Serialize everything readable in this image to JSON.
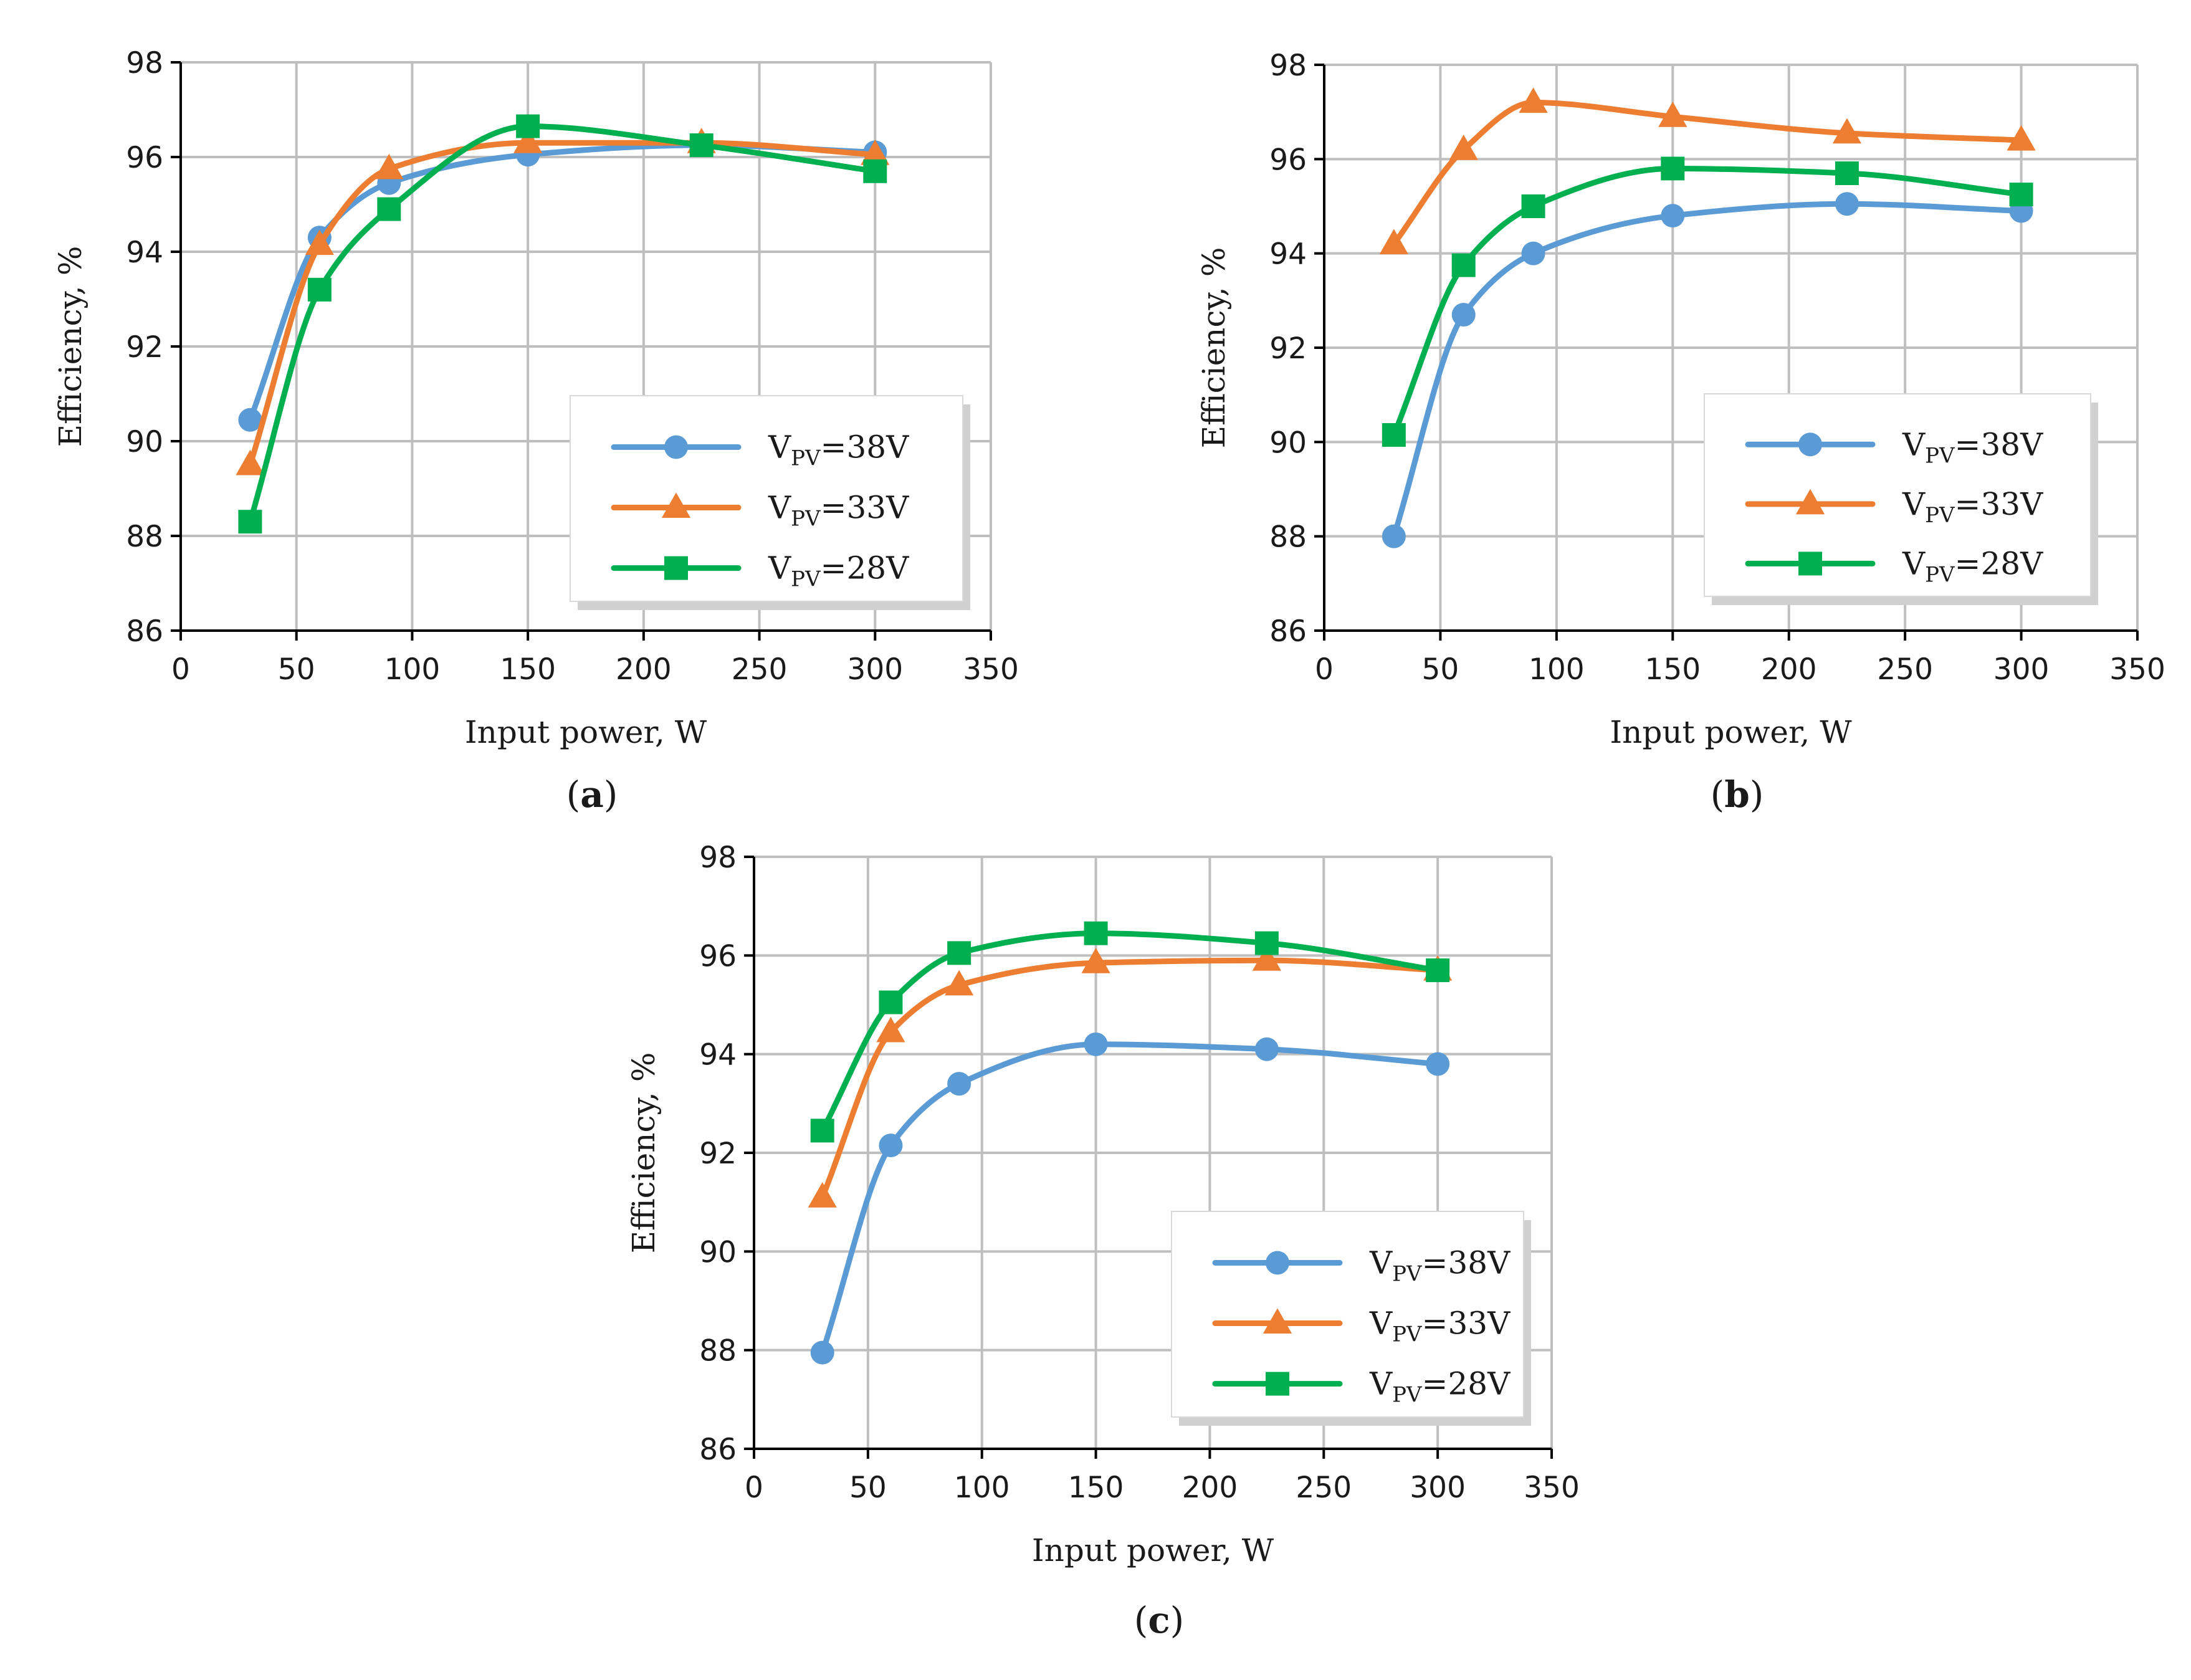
{
  "chart_data": [
    {
      "type": "line",
      "panel_label": "(a)",
      "panel_letter": "a",
      "xlabel": "Input power, W",
      "ylabel": "Efficiency, %",
      "xlim": [
        0,
        350
      ],
      "ylim": [
        86,
        98
      ],
      "xticks": [
        0,
        50,
        100,
        150,
        200,
        250,
        300,
        350
      ],
      "yticks": [
        86,
        88,
        90,
        92,
        94,
        96,
        98
      ],
      "grid": true,
      "legend_position": "bottom-right",
      "series": [
        {
          "name": "VPV=38V",
          "label_main": "V",
          "label_sub": "PV",
          "label_rest": "=38V",
          "color": "#5B9BD5",
          "marker": "circle",
          "x": [
            30,
            60,
            90,
            150,
            225,
            300
          ],
          "y": [
            90.45,
            94.3,
            95.45,
            96.05,
            96.25,
            96.1
          ]
        },
        {
          "name": "VPV=33V",
          "label_main": "V",
          "label_sub": "PV",
          "label_rest": "=33V",
          "color": "#ED7D31",
          "marker": "triangle",
          "x": [
            30,
            60,
            90,
            150,
            225,
            300
          ],
          "y": [
            89.5,
            94.15,
            95.75,
            96.3,
            96.3,
            96.05
          ]
        },
        {
          "name": "VPV=28V",
          "label_main": "V",
          "label_sub": "PV",
          "label_rest": "=28V",
          "color": "#00B050",
          "marker": "square",
          "x": [
            30,
            60,
            90,
            150,
            225,
            300
          ],
          "y": [
            88.3,
            93.2,
            94.9,
            96.65,
            96.25,
            95.7
          ]
        }
      ]
    },
    {
      "type": "line",
      "panel_label": "(b)",
      "panel_letter": "b",
      "xlabel": "Input power, W",
      "ylabel": "Efficiency, %",
      "xlim": [
        0,
        350
      ],
      "ylim": [
        86,
        98
      ],
      "xticks": [
        0,
        50,
        100,
        150,
        200,
        250,
        300,
        350
      ],
      "yticks": [
        86,
        88,
        90,
        92,
        94,
        96,
        98
      ],
      "grid": true,
      "legend_position": "bottom-right",
      "series": [
        {
          "name": "VPV=38V",
          "label_main": "V",
          "label_sub": "PV",
          "label_rest": "=38V",
          "color": "#5B9BD5",
          "marker": "circle",
          "x": [
            30,
            60,
            90,
            150,
            225,
            300
          ],
          "y": [
            88.0,
            92.7,
            94.0,
            94.8,
            95.05,
            94.9
          ]
        },
        {
          "name": "VPV=33V",
          "label_main": "V",
          "label_sub": "PV",
          "label_rest": "=33V",
          "color": "#ED7D31",
          "marker": "triangle",
          "x": [
            30,
            60,
            90,
            150,
            225,
            300
          ],
          "y": [
            94.2,
            96.2,
            97.2,
            96.9,
            96.55,
            96.4
          ]
        },
        {
          "name": "VPV=28V",
          "label_main": "V",
          "label_sub": "PV",
          "label_rest": "=28V",
          "color": "#00B050",
          "marker": "square",
          "x": [
            30,
            60,
            90,
            150,
            225,
            300
          ],
          "y": [
            90.15,
            93.75,
            95.0,
            95.8,
            95.7,
            95.25
          ]
        }
      ]
    },
    {
      "type": "line",
      "panel_label": "(c)",
      "panel_letter": "c",
      "xlabel": "Input power, W",
      "ylabel": "Efficiency, %",
      "xlim": [
        0,
        350
      ],
      "ylim": [
        86,
        98
      ],
      "xticks": [
        0,
        50,
        100,
        150,
        200,
        250,
        300,
        350
      ],
      "yticks": [
        86,
        88,
        90,
        92,
        94,
        96,
        98
      ],
      "grid": true,
      "legend_position": "bottom-right",
      "series": [
        {
          "name": "VPV=38V",
          "label_main": "V",
          "label_sub": "PV",
          "label_rest": "=38V",
          "color": "#5B9BD5",
          "marker": "circle",
          "x": [
            30,
            60,
            90,
            150,
            225,
            300
          ],
          "y": [
            87.95,
            92.15,
            93.4,
            94.2,
            94.1,
            93.8
          ]
        },
        {
          "name": "VPV=33V",
          "label_main": "V",
          "label_sub": "PV",
          "label_rest": "=33V",
          "color": "#ED7D31",
          "marker": "triangle",
          "x": [
            30,
            60,
            90,
            150,
            225,
            300
          ],
          "y": [
            91.1,
            94.45,
            95.4,
            95.85,
            95.9,
            95.7
          ]
        },
        {
          "name": "VPV=28V",
          "label_main": "V",
          "label_sub": "PV",
          "label_rest": "=28V",
          "color": "#00B050",
          "marker": "square",
          "x": [
            30,
            60,
            90,
            150,
            225,
            300
          ],
          "y": [
            92.45,
            95.05,
            96.05,
            96.45,
            96.25,
            95.7
          ]
        }
      ]
    }
  ]
}
